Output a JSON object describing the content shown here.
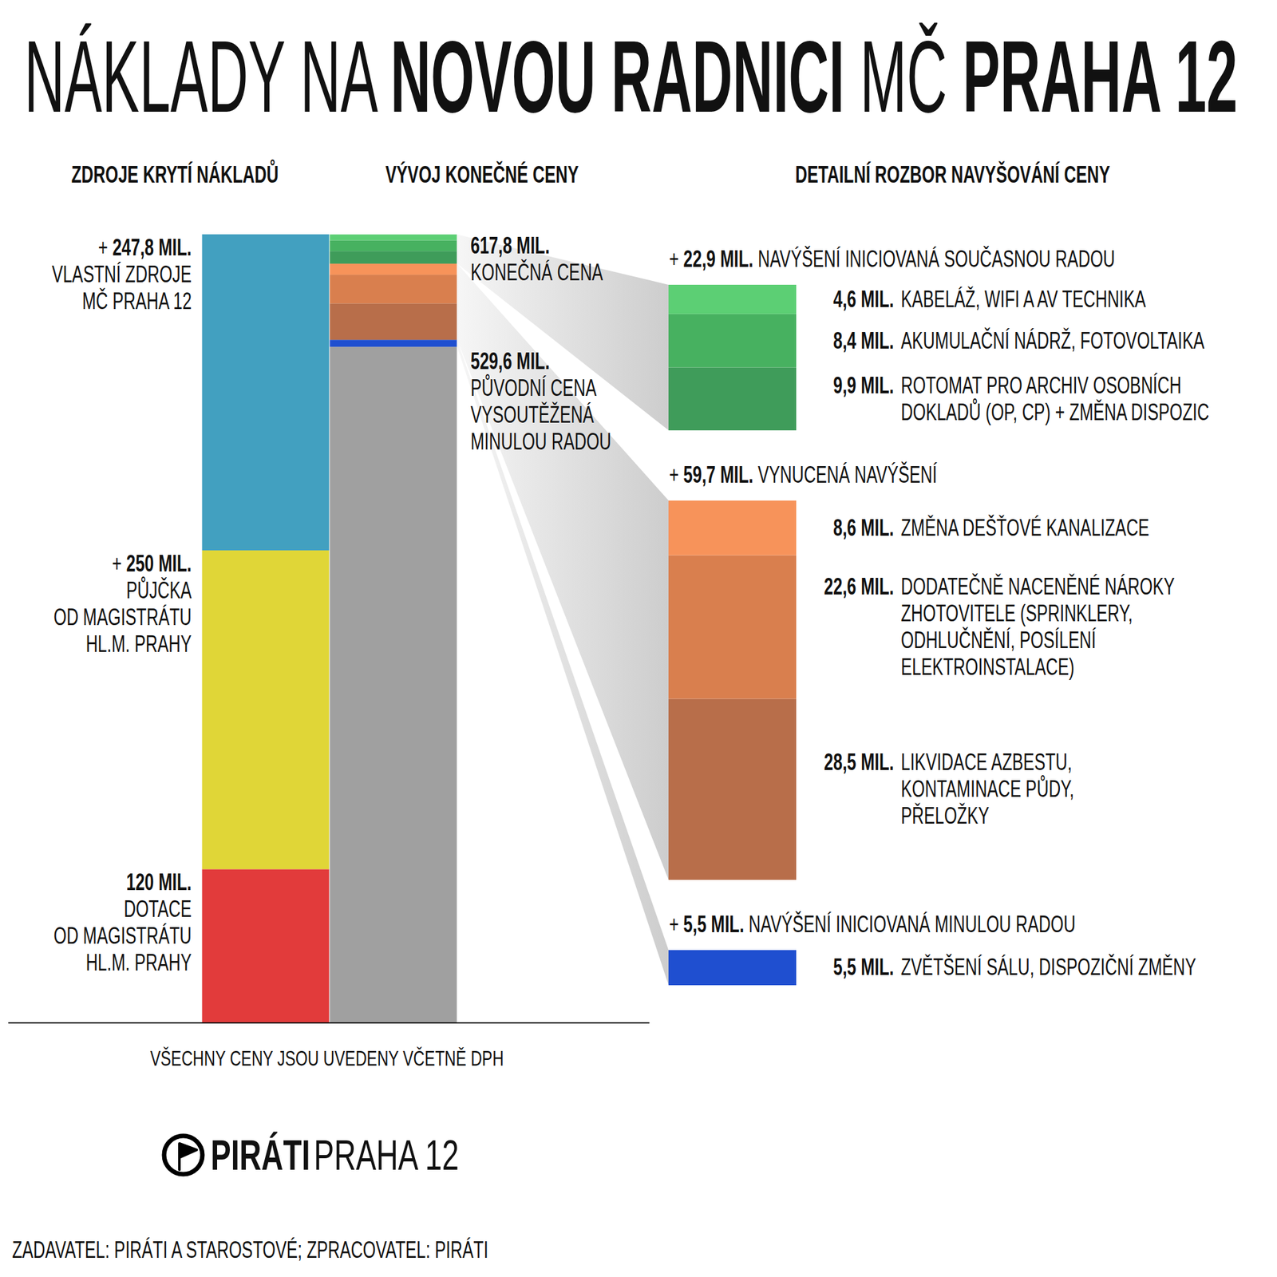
{
  "chart_data": {
    "type": "bar",
    "stacked": true,
    "data_labels": true,
    "tick_labels": false,
    "title": [
      {
        "text": "NÁKLADY NA ",
        "bold": false
      },
      {
        "text": "NOVOU RADNICI",
        "bold": true
      },
      {
        "text": " MČ ",
        "bold": false
      },
      {
        "text": "PRAHA 12",
        "bold": true
      }
    ],
    "categories": [
      "ZDROJE KRYTÍ NÁKLADŮ",
      "VÝVOJ KONEČNÉ CENY"
    ],
    "ylim": [
      0,
      617.8
    ],
    "sources": {
      "segments": [
        {
          "name": "DOTACE\nOD MAGISTRÁTU\nHL.M. PRAHY",
          "value": 120,
          "value_label": "120 MIL.",
          "color": "#e23b3b"
        },
        {
          "name": "PŮJČKA\nOD MAGISTRÁTU\nHL.M. PRAHY",
          "value": 250,
          "value_label": "+ 250 MIL.",
          "color": "#e0d637"
        },
        {
          "name": "VLASTNÍ ZDROJE\nMČ PRAHA 12",
          "value": 247.8,
          "value_label": "+ 247,8 MIL.",
          "color": "#42a0c0"
        }
      ]
    },
    "price": {
      "base": {
        "name": "PŮVODNÍ CENA\nVYSOUTĚŽENÁ\nMINULOU RADOU",
        "value": 529.6,
        "value_label": "529,6 MIL.",
        "color": "#a0a0a0"
      },
      "final": {
        "name": "KONEČNÁ CENA",
        "value": 617.8,
        "value_label": "617,8 MIL."
      }
    },
    "detail": {
      "title": "DETAILNÍ ROZBOR NAVYŠOVÁNÍ CENY",
      "groups": [
        {
          "name": "NAVÝŠENÍ INICIOVANÁ MINULOU RADOU",
          "value_label": "+ 5,5 MIL.",
          "ylim": [
            0,
            5.5
          ],
          "segments": [
            {
              "name": "ZVĚTŠENÍ SÁLU, DISPOZIČNÍ ZMĚNY",
              "value": 5.5,
              "value_label": "5,5 MIL.",
              "color": "#1f4fd0"
            }
          ]
        },
        {
          "name": "VYNUCENÁ NAVÝŠENÍ",
          "value_label": "+ 59,7 MIL.",
          "ylim": [
            0,
            59.7
          ],
          "segments": [
            {
              "name": "LIKVIDACE AZBESTU,\nKONTAMINACE PŮDY,\nPŘELOŽKY",
              "value": 28.5,
              "value_label": "28,5 MIL.",
              "color": "#b86e4a"
            },
            {
              "name": "DODATEČNĚ NACENĚNÉ NÁROKY\nZHOTOVITELE (SPRINKLERY,\nODHLUČNĚNÍ, POSÍLENÍ\nELEKTROINSTALACE)",
              "value": 22.6,
              "value_label": "22,6 MIL.",
              "color": "#d97f4e"
            },
            {
              "name": "ZMĚNA DEŠŤOVÉ KANALIZACE",
              "value": 8.6,
              "value_label": "8,6 MIL.",
              "color": "#f7935a"
            }
          ]
        },
        {
          "name": "NAVÝŠENÍ INICIOVANÁ SOUČASNOU RADOU",
          "value_label": "+ 22,9 MIL.",
          "ylim": [
            0,
            22.9
          ],
          "segments": [
            {
              "name": "ROTOMAT PRO ARCHIV OSOBNÍCH\nDOKLADŮ (OP, CP) + ZMĚNA DISPOZIC",
              "value": 9.9,
              "value_label": "9,9 MIL.",
              "color": "#3f9c5a"
            },
            {
              "name": "AKUMULAČNÍ NÁDRŽ, FOTOVOLTAIKA",
              "value": 8.4,
              "value_label": "8,4 MIL.",
              "color": "#47b160"
            },
            {
              "name": "KABELÁŽ, WIFI A AV TECHNIKA",
              "value": 4.6,
              "value_label": "4,6 MIL.",
              "color": "#5ccf74"
            }
          ]
        }
      ]
    },
    "note": "VŠECHNY CENY JSOU UVEDENY VČETNĚ DPH",
    "logo": [
      "PIRÁTI",
      "PRAHA 12"
    ],
    "footer": "ZADAVATEL: PIRÁTI A STAROSTOVÉ; ZPRACOVATEL: PIRÁTI"
  }
}
